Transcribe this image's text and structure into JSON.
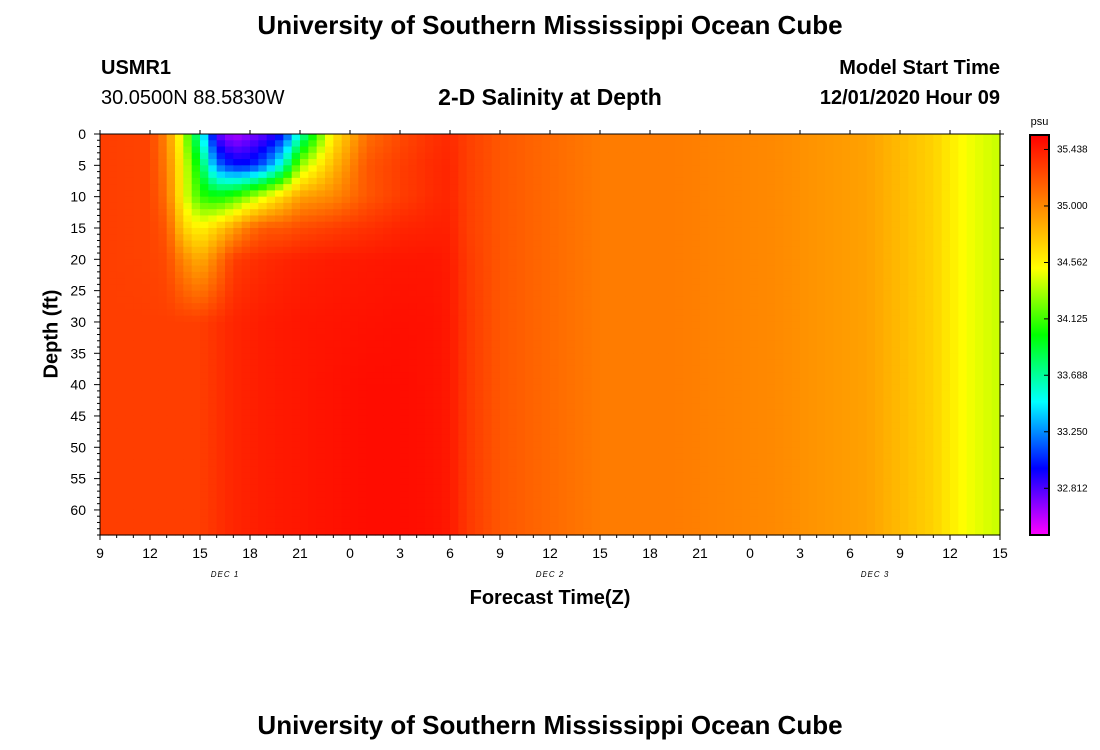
{
  "page": {
    "title": "University of Southern Mississippi Ocean Cube",
    "footer_title": "University of Southern Mississippi Ocean Cube",
    "station_id": "USMR1",
    "station_coords": "30.0500N 88.5830W",
    "plot_title": "2-D Salinity at Depth",
    "model_start_label": "Model Start Time",
    "model_start_value": "12/01/2020 Hour 09"
  },
  "chart_data": {
    "type": "heatmap",
    "title": "2-D Salinity at Depth",
    "xlabel": "Forecast Time(Z)",
    "ylabel": "Depth (ft)",
    "x_tick_labels": [
      "9",
      "12",
      "15",
      "18",
      "21",
      "0",
      "3",
      "6",
      "9",
      "12",
      "15",
      "18",
      "21",
      "0",
      "3",
      "6",
      "9",
      "12",
      "15"
    ],
    "x_range_hours_from_start": [
      0,
      54
    ],
    "x_date_labels": [
      "DEC 1",
      "DEC 2",
      "DEC 3"
    ],
    "y_tick_labels": [
      "0",
      "5",
      "10",
      "15",
      "20",
      "25",
      "30",
      "35",
      "40",
      "45",
      "50",
      "55",
      "60"
    ],
    "y_range": [
      0,
      64
    ],
    "y_inverted": true,
    "colorbar": {
      "unit": "psu",
      "tick_labels": [
        "35.438",
        "35.000",
        "34.562",
        "34.125",
        "33.688",
        "33.250",
        "32.812"
      ],
      "range": [
        32.45,
        35.55
      ],
      "colors": [
        "#ff00ff",
        "#8000ff",
        "#0000ff",
        "#0080ff",
        "#00ffff",
        "#00ff80",
        "#00ff00",
        "#80ff00",
        "#ffff00",
        "#ffc000",
        "#ff8000",
        "#ff4000",
        "#ff0000"
      ]
    },
    "salinity_psu": {
      "hours": [
        0,
        3,
        4,
        5,
        6,
        7,
        8,
        9,
        10,
        11,
        12,
        14,
        16,
        18,
        20,
        21,
        22,
        24,
        26,
        28,
        30,
        34,
        40,
        46,
        50,
        52,
        54
      ],
      "depths": [
        0,
        5,
        10,
        15,
        20,
        30,
        40,
        50,
        64
      ],
      "values": [
        [
          35.3,
          35.28,
          35.0,
          34.4,
          33.6,
          32.8,
          32.6,
          32.7,
          32.8,
          33.0,
          33.6,
          34.6,
          35.1,
          35.25,
          35.35,
          35.38,
          35.3,
          35.2,
          35.15,
          35.1,
          35.05,
          35.05,
          35.0,
          34.9,
          34.7,
          34.5,
          34.4
        ],
        [
          35.3,
          35.28,
          35.05,
          34.5,
          33.9,
          33.2,
          33.0,
          33.0,
          33.2,
          33.6,
          34.3,
          34.8,
          35.2,
          35.3,
          35.38,
          35.4,
          35.3,
          35.2,
          35.15,
          35.1,
          35.05,
          35.05,
          35.0,
          34.9,
          34.7,
          34.5,
          34.4
        ],
        [
          35.3,
          35.28,
          35.1,
          34.5,
          34.1,
          34.0,
          34.1,
          34.3,
          34.5,
          34.7,
          34.9,
          35.0,
          35.2,
          35.3,
          35.38,
          35.4,
          35.3,
          35.2,
          35.15,
          35.1,
          35.05,
          35.05,
          35.0,
          34.9,
          34.7,
          34.5,
          34.4
        ],
        [
          35.3,
          35.28,
          35.2,
          34.7,
          34.55,
          34.7,
          34.9,
          35.1,
          35.2,
          35.2,
          35.25,
          35.3,
          35.35,
          35.4,
          35.42,
          35.42,
          35.3,
          35.2,
          35.15,
          35.1,
          35.05,
          35.05,
          35.0,
          34.9,
          34.7,
          34.5,
          34.4
        ],
        [
          35.3,
          35.28,
          35.25,
          35.0,
          34.85,
          35.05,
          35.3,
          35.35,
          35.38,
          35.4,
          35.42,
          35.44,
          35.45,
          35.46,
          35.46,
          35.44,
          35.32,
          35.2,
          35.15,
          35.1,
          35.05,
          35.05,
          35.0,
          34.9,
          34.7,
          34.5,
          34.4
        ],
        [
          35.3,
          35.3,
          35.3,
          35.3,
          35.3,
          35.35,
          35.4,
          35.42,
          35.44,
          35.45,
          35.46,
          35.47,
          35.48,
          35.49,
          35.48,
          35.45,
          35.33,
          35.2,
          35.15,
          35.1,
          35.05,
          35.05,
          35.0,
          34.9,
          34.7,
          34.5,
          34.4
        ],
        [
          35.3,
          35.3,
          35.3,
          35.3,
          35.3,
          35.35,
          35.4,
          35.42,
          35.44,
          35.45,
          35.46,
          35.48,
          35.5,
          35.5,
          35.48,
          35.45,
          35.33,
          35.2,
          35.15,
          35.1,
          35.05,
          35.05,
          35.0,
          34.9,
          34.7,
          34.5,
          34.4
        ],
        [
          35.3,
          35.3,
          35.3,
          35.3,
          35.3,
          35.35,
          35.4,
          35.42,
          35.44,
          35.45,
          35.46,
          35.48,
          35.5,
          35.5,
          35.48,
          35.45,
          35.33,
          35.2,
          35.15,
          35.1,
          35.05,
          35.05,
          35.0,
          34.9,
          34.7,
          34.5,
          34.4
        ],
        [
          35.3,
          35.3,
          35.3,
          35.3,
          35.3,
          35.35,
          35.4,
          35.42,
          35.44,
          35.45,
          35.46,
          35.48,
          35.5,
          35.5,
          35.48,
          35.45,
          35.33,
          35.2,
          35.15,
          35.1,
          35.05,
          35.05,
          35.0,
          34.9,
          34.7,
          34.5,
          34.4
        ]
      ]
    }
  }
}
